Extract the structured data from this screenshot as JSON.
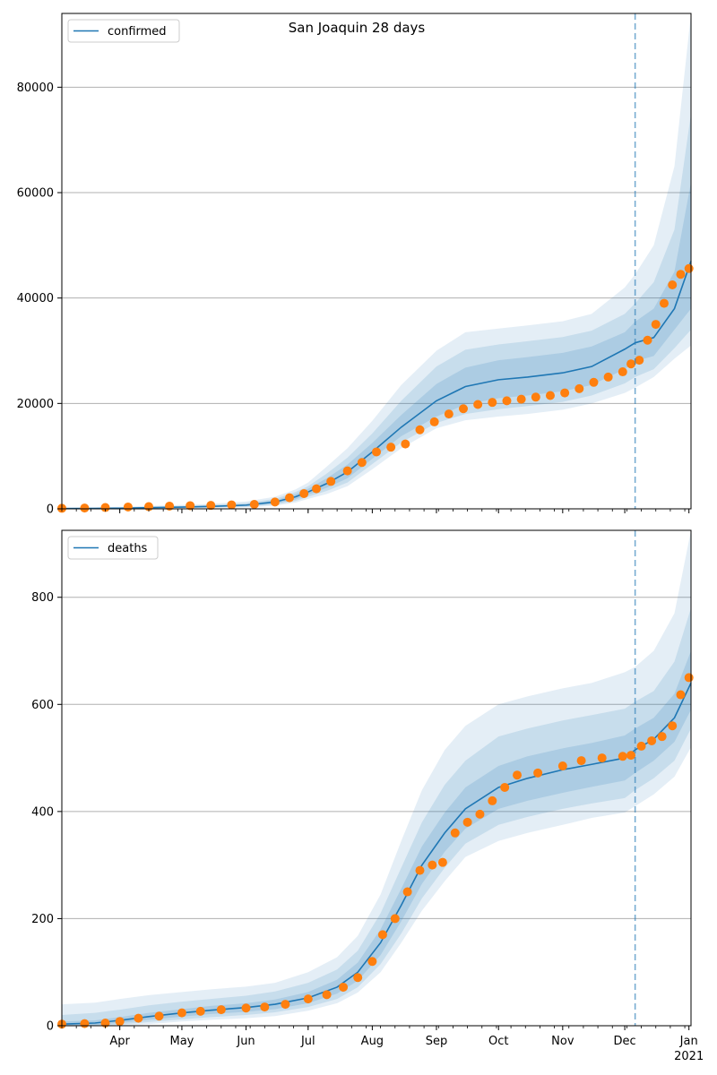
{
  "figure": {
    "title": "San Joaquin 28 days"
  },
  "colors": {
    "model_line": "#1f77b4",
    "band": "#1f77b4",
    "observed": "#ff7f0e",
    "forecast_start_line": "#1f77b4",
    "grid": "#b0b0b0"
  },
  "x_axis": {
    "ticks": [
      {
        "label": "Apr",
        "date": "2020-04-01"
      },
      {
        "label": "May",
        "date": "2020-05-01"
      },
      {
        "label": "Jun",
        "date": "2020-06-01"
      },
      {
        "label": "Jul",
        "date": "2020-07-01"
      },
      {
        "label": "Aug",
        "date": "2020-08-01"
      },
      {
        "label": "Sep",
        "date": "2020-09-01"
      },
      {
        "label": "Oct",
        "date": "2020-10-01"
      },
      {
        "label": "Nov",
        "date": "2020-11-01"
      },
      {
        "label": "Dec",
        "date": "2020-12-01"
      },
      {
        "label": "Jan",
        "date": "2021-01-01"
      }
    ],
    "year_label": "2021",
    "range": [
      "2020-03-04",
      "2021-01-02"
    ],
    "forecast_start": "2020-12-06"
  },
  "chart_data": [
    {
      "type": "line",
      "legend": "confirmed",
      "legend_position": "top-left",
      "ylim": [
        0,
        94000
      ],
      "yticks": [
        "0",
        "20000",
        "40000",
        "60000",
        "80000"
      ],
      "ytick_values": [
        0,
        20000,
        40000,
        60000,
        80000
      ],
      "grid": "horizontal",
      "model": {
        "x": [
          "2020-03-04",
          "2020-03-20",
          "2020-04-01",
          "2020-04-15",
          "2020-05-01",
          "2020-05-15",
          "2020-06-01",
          "2020-06-15",
          "2020-06-25",
          "2020-07-01",
          "2020-07-10",
          "2020-07-20",
          "2020-08-01",
          "2020-08-15",
          "2020-09-01",
          "2020-09-15",
          "2020-10-01",
          "2020-10-15",
          "2020-11-01",
          "2020-11-15",
          "2020-12-01",
          "2020-12-06",
          "2020-12-15",
          "2020-12-25",
          "2021-01-02"
        ],
        "y": [
          50,
          80,
          120,
          220,
          330,
          450,
          700,
          1300,
          2300,
          3200,
          4800,
          7000,
          10800,
          15500,
          20500,
          23200,
          24500,
          25000,
          25800,
          27000,
          30300,
          31500,
          32500,
          38000,
          47000
        ],
        "band_inner_low": [
          0,
          30,
          80,
          150,
          230,
          320,
          500,
          1000,
          1800,
          2700,
          4000,
          5800,
          9500,
          13800,
          17500,
          19800,
          21000,
          21500,
          22300,
          23500,
          26500,
          28000,
          29000,
          34000,
          38000
        ],
        "band_inner_high": [
          100,
          140,
          180,
          300,
          430,
          580,
          900,
          1600,
          2800,
          3800,
          5800,
          8400,
          12500,
          17800,
          23700,
          26800,
          28200,
          28800,
          29600,
          30800,
          33500,
          35500,
          38000,
          45000,
          62000
        ],
        "band_mid_low": [
          0,
          0,
          40,
          100,
          170,
          250,
          380,
          800,
          1500,
          2300,
          3400,
          5000,
          8500,
          12600,
          16300,
          18000,
          18900,
          19500,
          20300,
          21500,
          23800,
          25000,
          26500,
          30500,
          34000
        ],
        "band_mid_high": [
          150,
          200,
          260,
          400,
          560,
          740,
          1100,
          1900,
          3200,
          4300,
          6700,
          9700,
          14300,
          20500,
          27000,
          30200,
          31200,
          31800,
          32600,
          33800,
          37000,
          39000,
          43000,
          53000,
          75000
        ],
        "band_outer_low": [
          0,
          0,
          0,
          50,
          100,
          170,
          280,
          600,
          1200,
          1900,
          2800,
          4300,
          7500,
          11500,
          15300,
          16800,
          17500,
          18000,
          18800,
          20000,
          22000,
          23000,
          25000,
          28500,
          31000
        ],
        "band_outer_high": [
          250,
          300,
          380,
          560,
          750,
          950,
          1400,
          2300,
          3700,
          5000,
          8000,
          11500,
          16700,
          23500,
          30000,
          33500,
          34200,
          34800,
          35600,
          37000,
          42000,
          44500,
          50000,
          65000,
          94000
        ]
      },
      "observed": {
        "x": [
          "2020-03-04",
          "2020-03-15",
          "2020-03-25",
          "2020-04-05",
          "2020-04-15",
          "2020-04-25",
          "2020-05-05",
          "2020-05-15",
          "2020-05-25",
          "2020-06-05",
          "2020-06-15",
          "2020-06-22",
          "2020-06-29",
          "2020-07-05",
          "2020-07-12",
          "2020-07-20",
          "2020-07-27",
          "2020-08-03",
          "2020-08-10",
          "2020-08-17",
          "2020-08-24",
          "2020-08-31",
          "2020-09-07",
          "2020-09-14",
          "2020-09-21",
          "2020-09-28",
          "2020-10-05",
          "2020-10-12",
          "2020-10-19",
          "2020-10-26",
          "2020-11-02",
          "2020-11-09",
          "2020-11-16",
          "2020-11-23",
          "2020-11-30",
          "2020-12-04",
          "2020-12-08",
          "2020-12-12",
          "2020-12-16",
          "2020-12-20",
          "2020-12-24",
          "2020-12-28",
          "2021-01-01"
        ],
        "y": [
          100,
          150,
          250,
          350,
          420,
          520,
          600,
          650,
          750,
          850,
          1300,
          2100,
          2900,
          3800,
          5200,
          7200,
          8800,
          10800,
          11700,
          12300,
          15000,
          16500,
          18000,
          19000,
          19800,
          20200,
          20500,
          20800,
          21200,
          21500,
          22000,
          22800,
          24000,
          25000,
          26000,
          27500,
          28200,
          32000,
          35000,
          39000,
          42500,
          44500,
          45600
        ]
      }
    },
    {
      "type": "line",
      "legend": "deaths",
      "legend_position": "top-left",
      "ylim": [
        0,
        925
      ],
      "yticks": [
        "0",
        "200",
        "400",
        "600",
        "800"
      ],
      "ytick_values": [
        0,
        200,
        400,
        600,
        800
      ],
      "grid": "horizontal",
      "model": {
        "x": [
          "2020-03-04",
          "2020-03-20",
          "2020-04-01",
          "2020-04-15",
          "2020-05-01",
          "2020-05-15",
          "2020-06-01",
          "2020-06-15",
          "2020-07-01",
          "2020-07-15",
          "2020-07-25",
          "2020-08-05",
          "2020-08-15",
          "2020-08-25",
          "2020-09-05",
          "2020-09-15",
          "2020-10-01",
          "2020-10-15",
          "2020-11-01",
          "2020-11-15",
          "2020-12-01",
          "2020-12-06",
          "2020-12-15",
          "2020-12-25",
          "2021-01-02"
        ],
        "y": [
          3,
          5,
          10,
          17,
          24,
          29,
          34,
          40,
          52,
          72,
          100,
          155,
          225,
          300,
          360,
          405,
          445,
          462,
          478,
          488,
          500,
          515,
          535,
          575,
          640
        ],
        "band_inner_low": [
          0,
          1,
          5,
          11,
          17,
          22,
          26,
          31,
          42,
          60,
          84,
          132,
          195,
          265,
          325,
          368,
          405,
          420,
          435,
          446,
          458,
          472,
          495,
          530,
          590
        ],
        "band_inner_high": [
          8,
          10,
          16,
          24,
          31,
          37,
          42,
          49,
          63,
          86,
          118,
          180,
          256,
          335,
          398,
          445,
          485,
          503,
          518,
          528,
          542,
          555,
          575,
          620,
          700
        ],
        "band_mid_low": [
          0,
          0,
          2,
          7,
          12,
          16,
          20,
          25,
          35,
          50,
          72,
          115,
          172,
          238,
          295,
          340,
          375,
          390,
          405,
          415,
          425,
          440,
          462,
          495,
          555
        ],
        "band_mid_high": [
          20,
          24,
          30,
          38,
          45,
          50,
          56,
          64,
          80,
          105,
          140,
          210,
          295,
          380,
          450,
          495,
          540,
          555,
          570,
          580,
          592,
          605,
          625,
          680,
          780
        ],
        "band_outer_low": [
          0,
          0,
          0,
          3,
          8,
          11,
          14,
          18,
          28,
          42,
          62,
          100,
          155,
          215,
          270,
          315,
          345,
          360,
          375,
          388,
          398,
          410,
          432,
          465,
          520
        ],
        "band_outer_high": [
          40,
          43,
          50,
          57,
          63,
          68,
          73,
          80,
          100,
          128,
          168,
          245,
          345,
          440,
          515,
          560,
          600,
          615,
          630,
          640,
          660,
          670,
          700,
          770,
          925
        ]
      },
      "observed": {
        "x": [
          "2020-03-04",
          "2020-03-15",
          "2020-03-25",
          "2020-04-01",
          "2020-04-10",
          "2020-04-20",
          "2020-05-01",
          "2020-05-10",
          "2020-05-20",
          "2020-06-01",
          "2020-06-10",
          "2020-06-20",
          "2020-07-01",
          "2020-07-10",
          "2020-07-18",
          "2020-07-25",
          "2020-08-01",
          "2020-08-06",
          "2020-08-12",
          "2020-08-18",
          "2020-08-24",
          "2020-08-30",
          "2020-09-04",
          "2020-09-10",
          "2020-09-16",
          "2020-09-22",
          "2020-09-28",
          "2020-10-04",
          "2020-10-10",
          "2020-10-20",
          "2020-11-01",
          "2020-11-10",
          "2020-11-20",
          "2020-11-30",
          "2020-12-04",
          "2020-12-09",
          "2020-12-14",
          "2020-12-19",
          "2020-12-24",
          "2020-12-28",
          "2021-01-01"
        ],
        "y": [
          3,
          4,
          5,
          8,
          14,
          18,
          24,
          27,
          30,
          33,
          35,
          40,
          50,
          58,
          72,
          90,
          120,
          170,
          200,
          250,
          290,
          300,
          305,
          360,
          380,
          395,
          420,
          445,
          468,
          472,
          485,
          495,
          500,
          503,
          505,
          522,
          532,
          540,
          560,
          618,
          650
        ]
      }
    }
  ]
}
